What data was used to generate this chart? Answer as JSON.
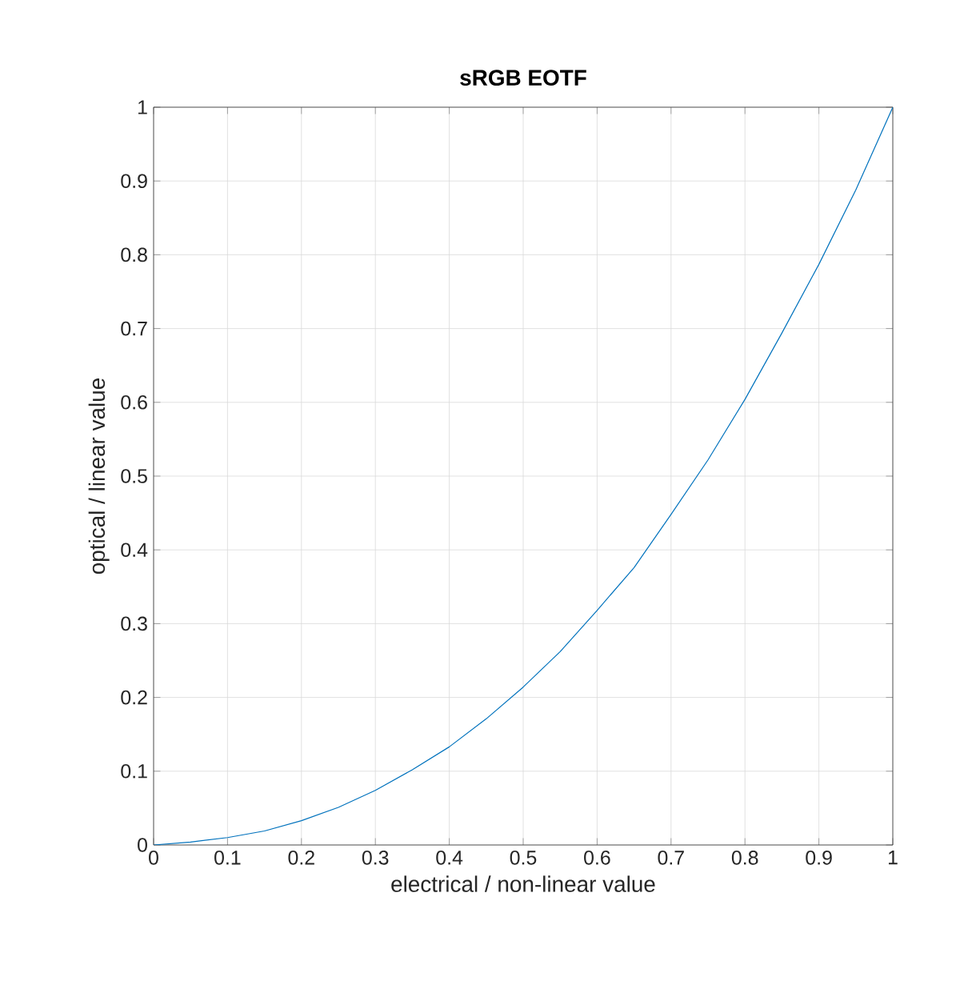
{
  "chart_data": {
    "type": "line",
    "title": "sRGB EOTF",
    "xlabel": "electrical / non-linear value",
    "ylabel": "optical / linear value",
    "x": [
      0,
      0.05,
      0.1,
      0.15,
      0.2,
      0.25,
      0.3,
      0.35,
      0.4,
      0.45,
      0.5,
      0.55,
      0.6,
      0.65,
      0.7,
      0.75,
      0.8,
      0.85,
      0.9,
      0.95,
      1
    ],
    "series": [
      {
        "color": "#0072bd",
        "values": [
          0,
          0.004,
          0.01,
          0.019,
          0.033,
          0.051,
          0.074,
          0.102,
          0.133,
          0.171,
          0.214,
          0.262,
          0.318,
          0.376,
          0.448,
          0.522,
          0.604,
          0.694,
          0.787,
          0.888,
          1
        ]
      }
    ],
    "xlim": [
      0,
      1
    ],
    "ylim": [
      0,
      1
    ],
    "xticks": [
      0,
      0.1,
      0.2,
      0.3,
      0.4,
      0.5,
      0.6,
      0.7,
      0.8,
      0.9,
      1
    ],
    "yticks": [
      0,
      0.1,
      0.2,
      0.3,
      0.4,
      0.5,
      0.6,
      0.7,
      0.8,
      0.9,
      1
    ],
    "grid": true,
    "marker": "none",
    "line_style": "solid"
  }
}
